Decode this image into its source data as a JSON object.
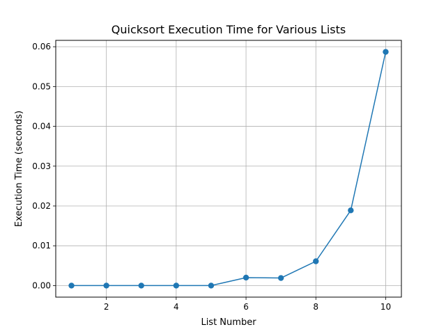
{
  "chart_data": {
    "type": "line",
    "title": "Quicksort Execution Time for Various Lists",
    "xlabel": "List Number",
    "ylabel": "Execution Time (seconds)",
    "xlim": [
      0.55,
      10.45
    ],
    "ylim": [
      -0.0029,
      0.0616
    ],
    "xticks": [
      2,
      4,
      6,
      8,
      10
    ],
    "xtick_labels": [
      "2",
      "4",
      "6",
      "8",
      "10"
    ],
    "yticks": [
      0.0,
      0.01,
      0.02,
      0.03,
      0.04,
      0.05,
      0.06
    ],
    "ytick_labels": [
      "0.00",
      "0.01",
      "0.02",
      "0.03",
      "0.04",
      "0.05",
      "0.06"
    ],
    "grid": true,
    "legend": "none",
    "series": [
      {
        "color": "#1f77b4",
        "marker": "circle",
        "x": [
          1,
          2,
          3,
          4,
          5,
          6,
          7,
          8,
          9,
          10
        ],
        "y": [
          0.0,
          0.0,
          0.0,
          0.0,
          0.0,
          0.002,
          0.0019,
          0.0061,
          0.0189,
          0.0587
        ]
      }
    ]
  }
}
